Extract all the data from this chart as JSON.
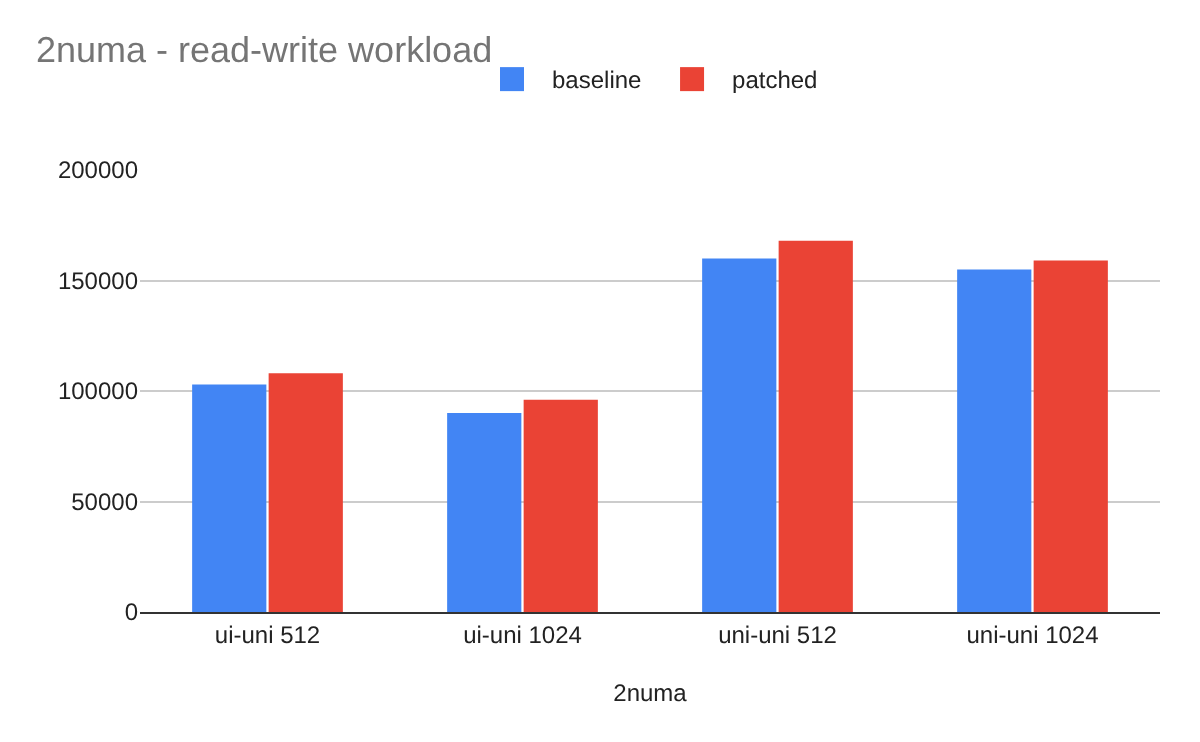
{
  "chart_data": {
    "type": "bar",
    "title": "2numa - read-write workload",
    "xlabel": "2numa",
    "categories": [
      "ui-uni 512",
      "ui-uni 1024",
      "uni-uni 512",
      "uni-uni 1024"
    ],
    "series": [
      {
        "name": "baseline",
        "color": "#4285f4",
        "values": [
          103000,
          90000,
          160000,
          155000
        ]
      },
      {
        "name": "patched",
        "color": "#ea4335",
        "values": [
          108000,
          96000,
          168000,
          159000
        ]
      }
    ],
    "ylim": [
      0,
      200000
    ],
    "yticks": [
      0,
      50000,
      100000,
      150000,
      200000
    ],
    "grid": "y",
    "legend": "top"
  }
}
